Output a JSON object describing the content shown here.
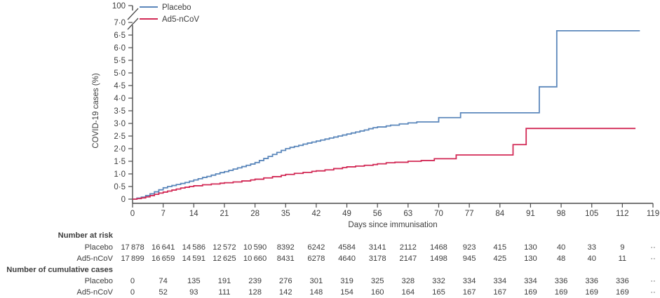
{
  "theme": {
    "text_color": "#3d3d3d",
    "axis_color": "#4a4a4a",
    "placebo_color": "#5b87bb",
    "ad5_color": "#d22a56"
  },
  "legend": {
    "items": [
      {
        "label": "Placebo",
        "series": "Placebo"
      },
      {
        "label": "Ad5-nCoV",
        "series": "Ad5-nCoV"
      }
    ]
  },
  "chart_data": {
    "type": "line",
    "subtype": "step-kaplan-meier",
    "title": "",
    "xlabel": "Days since immunisation",
    "ylabel": "COVID-19 cases (%)",
    "xlim": [
      0,
      119
    ],
    "ylim": [
      0,
      7
    ],
    "y_axis_break": true,
    "y_axis_break_top_label": "100",
    "grid": false,
    "legend_position": "top-left",
    "xticks": [
      0,
      7,
      14,
      21,
      28,
      35,
      42,
      49,
      56,
      63,
      70,
      77,
      84,
      91,
      98,
      105,
      112,
      119
    ],
    "ytick_labels": [
      "0",
      "0·5",
      "1·0",
      "1·5",
      "2·0",
      "2·5",
      "3·0",
      "3·5",
      "4·0",
      "4·5",
      "5·0",
      "5·5",
      "6·0",
      "6·5",
      "7·0"
    ],
    "series": [
      {
        "name": "Placebo",
        "color": "#5b87bb",
        "end_day": 116,
        "steps": [
          [
            0,
            0
          ],
          [
            1,
            0.04
          ],
          [
            2,
            0.08
          ],
          [
            3,
            0.14
          ],
          [
            4,
            0.21
          ],
          [
            5,
            0.29
          ],
          [
            6,
            0.37
          ],
          [
            7,
            0.45
          ],
          [
            8,
            0.5
          ],
          [
            9,
            0.54
          ],
          [
            10,
            0.58
          ],
          [
            11,
            0.62
          ],
          [
            12,
            0.66
          ],
          [
            13,
            0.71
          ],
          [
            14,
            0.76
          ],
          [
            15,
            0.81
          ],
          [
            16,
            0.86
          ],
          [
            17,
            0.9
          ],
          [
            18,
            0.95
          ],
          [
            19,
            1.0
          ],
          [
            20,
            1.05
          ],
          [
            21,
            1.09
          ],
          [
            22,
            1.14
          ],
          [
            23,
            1.19
          ],
          [
            24,
            1.24
          ],
          [
            25,
            1.29
          ],
          [
            26,
            1.34
          ],
          [
            27,
            1.39
          ],
          [
            28,
            1.45
          ],
          [
            29,
            1.53
          ],
          [
            30,
            1.61
          ],
          [
            31,
            1.69
          ],
          [
            32,
            1.77
          ],
          [
            33,
            1.85
          ],
          [
            34,
            1.93
          ],
          [
            35,
            2.0
          ],
          [
            36,
            2.05
          ],
          [
            37,
            2.09
          ],
          [
            38,
            2.13
          ],
          [
            39,
            2.18
          ],
          [
            40,
            2.22
          ],
          [
            41,
            2.26
          ],
          [
            42,
            2.3
          ],
          [
            43,
            2.34
          ],
          [
            44,
            2.38
          ],
          [
            45,
            2.42
          ],
          [
            46,
            2.46
          ],
          [
            47,
            2.5
          ],
          [
            48,
            2.54
          ],
          [
            49,
            2.58
          ],
          [
            50,
            2.62
          ],
          [
            51,
            2.66
          ],
          [
            52,
            2.7
          ],
          [
            53,
            2.74
          ],
          [
            54,
            2.79
          ],
          [
            55,
            2.83
          ],
          [
            56,
            2.86
          ],
          [
            58,
            2.9
          ],
          [
            59,
            2.93
          ],
          [
            61,
            2.98
          ],
          [
            63,
            3.02
          ],
          [
            65,
            3.06
          ],
          [
            70,
            3.23
          ],
          [
            75,
            3.42
          ],
          [
            93,
            4.45
          ],
          [
            97,
            6.67
          ]
        ]
      },
      {
        "name": "Ad5-nCoV",
        "color": "#d22a56",
        "end_day": 115,
        "steps": [
          [
            0,
            0
          ],
          [
            1,
            0.02
          ],
          [
            2,
            0.05
          ],
          [
            3,
            0.09
          ],
          [
            4,
            0.14
          ],
          [
            5,
            0.19
          ],
          [
            6,
            0.24
          ],
          [
            7,
            0.28
          ],
          [
            8,
            0.32
          ],
          [
            9,
            0.36
          ],
          [
            10,
            0.4
          ],
          [
            11,
            0.44
          ],
          [
            12,
            0.47
          ],
          [
            13,
            0.5
          ],
          [
            14,
            0.53
          ],
          [
            16,
            0.57
          ],
          [
            18,
            0.6
          ],
          [
            20,
            0.63
          ],
          [
            21,
            0.65
          ],
          [
            23,
            0.68
          ],
          [
            25,
            0.72
          ],
          [
            27,
            0.76
          ],
          [
            28,
            0.79
          ],
          [
            30,
            0.84
          ],
          [
            32,
            0.89
          ],
          [
            34,
            0.94
          ],
          [
            35,
            0.98
          ],
          [
            37,
            1.02
          ],
          [
            39,
            1.06
          ],
          [
            41,
            1.1
          ],
          [
            42,
            1.12
          ],
          [
            44,
            1.16
          ],
          [
            46,
            1.21
          ],
          [
            48,
            1.25
          ],
          [
            49,
            1.28
          ],
          [
            51,
            1.31
          ],
          [
            53,
            1.34
          ],
          [
            55,
            1.37
          ],
          [
            56,
            1.4
          ],
          [
            58,
            1.44
          ],
          [
            60,
            1.46
          ],
          [
            63,
            1.5
          ],
          [
            66,
            1.53
          ],
          [
            69,
            1.6
          ],
          [
            74,
            1.75
          ],
          [
            87,
            2.16
          ],
          [
            90,
            2.8
          ]
        ]
      }
    ]
  },
  "risk_table": {
    "column_days": [
      0,
      7,
      14,
      21,
      28,
      35,
      42,
      49,
      56,
      63,
      70,
      77,
      84,
      91,
      98,
      105,
      112,
      119
    ],
    "sections": [
      {
        "title": "Number at risk",
        "rows": [
          {
            "label": "Placebo",
            "values": [
              "17 878",
              "16 641",
              "14 586",
              "12 572",
              "10 590",
              "8392",
              "6242",
              "4584",
              "3141",
              "2112",
              "1468",
              "923",
              "415",
              "130",
              "40",
              "33",
              "9",
              "··"
            ]
          },
          {
            "label": "Ad5-nCoV",
            "values": [
              "17 899",
              "16 659",
              "14 591",
              "12 625",
              "10 660",
              "8431",
              "6278",
              "4640",
              "3178",
              "2147",
              "1498",
              "945",
              "425",
              "130",
              "48",
              "40",
              "11",
              "··"
            ]
          }
        ]
      },
      {
        "title": "Number of cumulative cases",
        "rows": [
          {
            "label": "Placebo",
            "values": [
              "0",
              "74",
              "135",
              "191",
              "239",
              "276",
              "301",
              "319",
              "325",
              "328",
              "332",
              "334",
              "334",
              "334",
              "336",
              "336",
              "336",
              "··"
            ]
          },
          {
            "label": "Ad5-nCoV",
            "values": [
              "0",
              "52",
              "93",
              "111",
              "128",
              "142",
              "148",
              "154",
              "160",
              "164",
              "165",
              "167",
              "167",
              "169",
              "169",
              "169",
              "169",
              "··"
            ]
          }
        ]
      }
    ]
  }
}
